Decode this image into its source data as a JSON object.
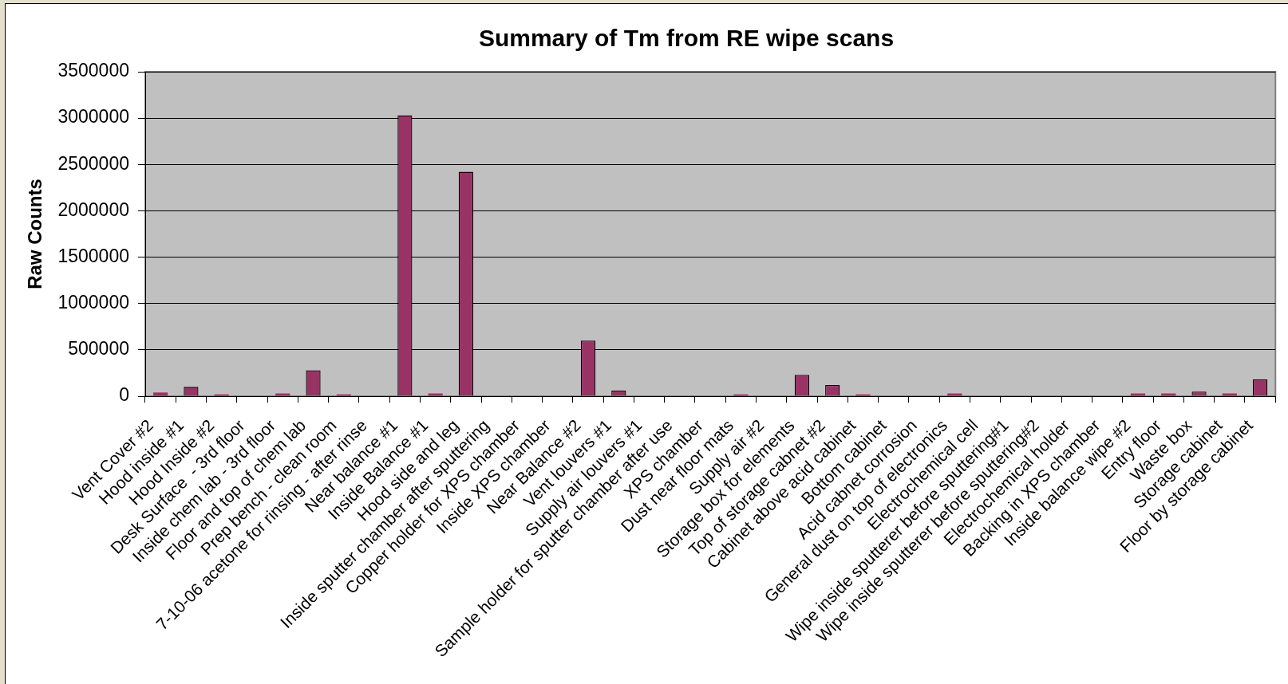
{
  "chart_data": {
    "type": "bar",
    "title": "Summary of Tm from RE wipe scans",
    "ylabel": "Raw Counts",
    "categories": [
      "Vent Cover #2",
      "Hood inside #1",
      "Hood Inside #2",
      "Desk Surface  - 3rd floor",
      "Inside chem lab - 3rd floor",
      "Floor and top of chem lab",
      "Prep bench - clean room",
      "7-10-06 acetone for rinsing - after rinse",
      "Near balance #1",
      "Inside Balance #1",
      "Hood side and leg",
      "Inside sputter chamber after sputtering",
      "Copper holder for XPS chamber",
      "Inside XPS chamber",
      "Near Balance #2",
      "Vent louvers #1",
      "Supply air louvers #1",
      "Sample holder for sputter chamber after use",
      "XPS chamber",
      "Dust near floor mats",
      "Supply air #2",
      "Storage box for elements",
      "Top of storage cabnet #2",
      "Cabinet above acid cabinet",
      "Bottom cabinet",
      "Acid cabnet corrosion",
      "General dust on top of electronics",
      "Electrochemical cell",
      "Wipe inside sputterer before sputtering#1",
      "Wipe inside sputterer before sputtering#2",
      "Electrochemical holder",
      "Backing in XPS chamber",
      "Inside balance wipe #2",
      "Entry floor",
      "Waste box",
      "Storage cabinet",
      "Floor by storage cabinet"
    ],
    "values": [
      40000,
      100000,
      20000,
      0,
      30000,
      280000,
      20000,
      0,
      3030000,
      30000,
      2420000,
      0,
      0,
      0,
      600000,
      60000,
      0,
      0,
      0,
      20000,
      0,
      230000,
      120000,
      20000,
      0,
      0,
      30000,
      0,
      0,
      0,
      0,
      0,
      30000,
      30000,
      50000,
      30000,
      180000
    ],
    "color": "#993366",
    "ylim": [
      0,
      3500000
    ],
    "yticks": [
      0,
      500000,
      1000000,
      1500000,
      2000000,
      2500000,
      3000000,
      3500000
    ],
    "grid": "y"
  }
}
